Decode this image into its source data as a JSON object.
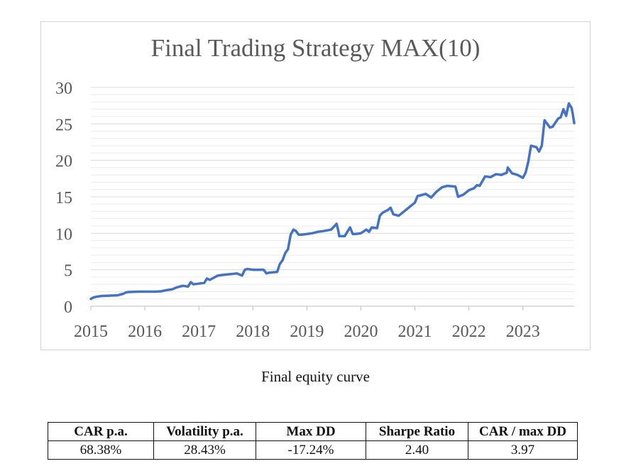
{
  "chart_data": {
    "type": "line",
    "title": "Final Trading Strategy MAX(10)",
    "xlabel": "",
    "ylabel": "",
    "x_ticks": [
      "2015",
      "2016",
      "2017",
      "2018",
      "2019",
      "2020",
      "2021",
      "2022",
      "2023"
    ],
    "y_ticks": [
      "0",
      "5",
      "10",
      "15",
      "20",
      "25",
      "30"
    ],
    "xlim": [
      2015.0,
      2023.95
    ],
    "ylim": [
      0,
      30
    ],
    "grid": true,
    "legend": "none",
    "series": [
      {
        "color": "#4472c4",
        "x": [
          2015.0,
          2015.05,
          2015.1,
          2015.2,
          2015.35,
          2015.5,
          2015.6,
          2015.65,
          2015.7,
          2015.9,
          2016.0,
          2016.2,
          2016.3,
          2016.4,
          2016.5,
          2016.6,
          2016.7,
          2016.8,
          2016.85,
          2016.9,
          2017.0,
          2017.1,
          2017.15,
          2017.2,
          2017.35,
          2017.45,
          2017.6,
          2017.7,
          2017.8,
          2017.85,
          2017.9,
          2018.0,
          2018.2,
          2018.25,
          2018.3,
          2018.45,
          2018.5,
          2018.55,
          2018.6,
          2018.65,
          2018.7,
          2018.75,
          2018.8,
          2018.85,
          2018.9,
          2019.0,
          2019.1,
          2019.2,
          2019.3,
          2019.45,
          2019.55,
          2019.58,
          2019.6,
          2019.7,
          2019.8,
          2019.85,
          2019.9,
          2020.0,
          2020.1,
          2020.15,
          2020.2,
          2020.3,
          2020.35,
          2020.4,
          2020.5,
          2020.55,
          2020.6,
          2020.7,
          2020.85,
          2020.9,
          2021.0,
          2021.05,
          2021.2,
          2021.3,
          2021.4,
          2021.5,
          2021.6,
          2021.75,
          2021.8,
          2021.9,
          2022.0,
          2022.1,
          2022.15,
          2022.2,
          2022.3,
          2022.4,
          2022.5,
          2022.6,
          2022.7,
          2022.72,
          2022.8,
          2022.9,
          2023.0,
          2023.05,
          2023.1,
          2023.15,
          2023.25,
          2023.3,
          2023.35,
          2023.4,
          2023.5,
          2023.55,
          2023.65,
          2023.7,
          2023.75,
          2023.8,
          2023.85,
          2023.9,
          2023.92,
          2023.95
        ],
        "y": [
          1.0,
          1.2,
          1.3,
          1.4,
          1.45,
          1.5,
          1.7,
          1.9,
          1.95,
          2.0,
          2.0,
          2.0,
          2.05,
          2.2,
          2.3,
          2.6,
          2.8,
          2.7,
          3.3,
          3.0,
          3.1,
          3.2,
          3.8,
          3.6,
          4.2,
          4.3,
          4.4,
          4.5,
          4.2,
          5.0,
          5.1,
          5.0,
          5.0,
          4.5,
          4.6,
          4.7,
          5.8,
          6.3,
          7.3,
          7.8,
          9.8,
          10.5,
          10.3,
          9.8,
          9.8,
          9.9,
          10.0,
          10.2,
          10.3,
          10.5,
          11.3,
          10.4,
          9.6,
          9.6,
          10.8,
          9.9,
          9.9,
          10.0,
          10.5,
          10.2,
          10.8,
          10.7,
          12.4,
          12.8,
          13.2,
          13.5,
          12.6,
          12.4,
          13.3,
          13.6,
          14.2,
          15.1,
          15.4,
          14.9,
          15.7,
          16.3,
          16.5,
          16.4,
          15.0,
          15.3,
          15.9,
          16.2,
          16.6,
          16.5,
          17.8,
          17.7,
          18.1,
          18.0,
          18.3,
          19.0,
          18.2,
          18.0,
          17.6,
          18.3,
          19.8,
          22.0,
          21.8,
          21.2,
          22.0,
          25.5,
          24.5,
          24.6,
          25.7,
          25.9,
          27.0,
          26.1,
          27.8,
          27.2,
          26.5,
          25.1
        ]
      }
    ]
  },
  "caption": "Final equity curve",
  "stats_table": {
    "headers": [
      "CAR p.a.",
      "Volatility p.a.",
      "Max DD",
      "Sharpe Ratio",
      "CAR / max DD"
    ],
    "values": [
      "68.38%",
      "28.43%",
      "-17.24%",
      "2.40",
      "3.97"
    ]
  }
}
